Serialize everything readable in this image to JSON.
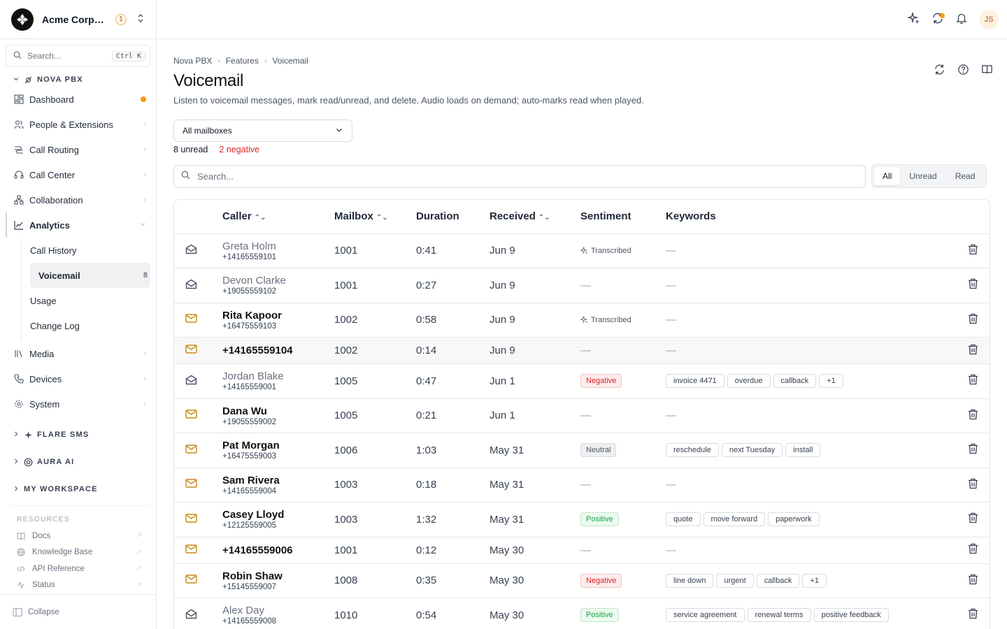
{
  "org": {
    "name": "Acme Corporation",
    "badge": "1"
  },
  "sidebar": {
    "search_placeholder": "Search...",
    "search_shortcut": "Ctrl K",
    "sections": {
      "nova": "NOVA PBX",
      "flare": "FLARE SMS",
      "aura": "AURA AI",
      "workspace": "MY WORKSPACE"
    },
    "items": {
      "dashboard": "Dashboard",
      "people": "People & Extensions",
      "routing": "Call Routing",
      "callcenter": "Call Center",
      "collab": "Collaboration",
      "analytics": "Analytics",
      "media": "Media",
      "devices": "Devices",
      "system": "System"
    },
    "analytics_sub": {
      "history": "Call History",
      "voicemail": "Voicemail",
      "voicemail_count": "8",
      "usage": "Usage",
      "changelog": "Change Log"
    },
    "resources": {
      "title": "RESOURCES",
      "docs": "Docs",
      "kb": "Knowledge Base",
      "api": "API Reference",
      "status": "Status"
    },
    "collapse": "Collapse"
  },
  "topbar": {
    "avatar": "JS"
  },
  "page": {
    "breadcrumb": [
      "Nova PBX",
      "Features",
      "Voicemail"
    ],
    "title": "Voicemail",
    "description": "Listen to voicemail messages, mark read/unread, and delete. Audio loads on demand; auto-marks read when played.",
    "mailbox_select": "All mailboxes",
    "unread_stat": "8 unread",
    "negative_stat": "2 negative",
    "search_placeholder": "Search...",
    "filters": [
      "All",
      "Unread",
      "Read"
    ],
    "active_filter": "All"
  },
  "table": {
    "headers": {
      "caller": "Caller",
      "mailbox": "Mailbox",
      "duration": "Duration",
      "received": "Received",
      "sentiment": "Sentiment",
      "keywords": "Keywords"
    },
    "rows": [
      {
        "name": "Greta Holm",
        "number": "+14165559101",
        "read": true,
        "mailbox": "1001",
        "duration": "0:41",
        "received": "Jun 9",
        "sentiment": "Transcribed",
        "sentiment_type": "transcribed",
        "keywords": []
      },
      {
        "name": "Devon Clarke",
        "number": "+19055559102",
        "read": true,
        "mailbox": "1001",
        "duration": "0:27",
        "received": "Jun 9",
        "sentiment": "",
        "sentiment_type": "none",
        "keywords": []
      },
      {
        "name": "Rita Kapoor",
        "number": "+16475559103",
        "read": false,
        "mailbox": "1002",
        "duration": "0:58",
        "received": "Jun 9",
        "sentiment": "Transcribed",
        "sentiment_type": "transcribed",
        "keywords": []
      },
      {
        "name": "+14165559104",
        "number": "",
        "read": false,
        "mailbox": "1002",
        "duration": "0:14",
        "received": "Jun 9",
        "sentiment": "",
        "sentiment_type": "none",
        "keywords": [],
        "highlight": true
      },
      {
        "name": "Jordan Blake",
        "number": "+14165559001",
        "read": true,
        "mailbox": "1005",
        "duration": "0:47",
        "received": "Jun 1",
        "sentiment": "Negative",
        "sentiment_type": "neg",
        "keywords": [
          "invoice 4471",
          "overdue",
          "callback",
          "+1"
        ]
      },
      {
        "name": "Dana Wu",
        "number": "+19055559002",
        "read": false,
        "mailbox": "1005",
        "duration": "0:21",
        "received": "Jun 1",
        "sentiment": "",
        "sentiment_type": "none",
        "keywords": []
      },
      {
        "name": "Pat Morgan",
        "number": "+16475559003",
        "read": false,
        "mailbox": "1006",
        "duration": "1:03",
        "received": "May 31",
        "sentiment": "Neutral",
        "sentiment_type": "neu",
        "keywords": [
          "reschedule",
          "next Tuesday",
          "install"
        ]
      },
      {
        "name": "Sam Rivera",
        "number": "+14165559004",
        "read": false,
        "mailbox": "1003",
        "duration": "0:18",
        "received": "May 31",
        "sentiment": "",
        "sentiment_type": "none",
        "keywords": []
      },
      {
        "name": "Casey Lloyd",
        "number": "+12125559005",
        "read": false,
        "mailbox": "1003",
        "duration": "1:32",
        "received": "May 31",
        "sentiment": "Positive",
        "sentiment_type": "pos",
        "keywords": [
          "quote",
          "move forward",
          "paperwork"
        ]
      },
      {
        "name": "+14165559006",
        "number": "",
        "read": false,
        "mailbox": "1001",
        "duration": "0:12",
        "received": "May 30",
        "sentiment": "",
        "sentiment_type": "none",
        "keywords": []
      },
      {
        "name": "Robin Shaw",
        "number": "+15145559007",
        "read": false,
        "mailbox": "1008",
        "duration": "0:35",
        "received": "May 30",
        "sentiment": "Negative",
        "sentiment_type": "neg",
        "keywords": [
          "line down",
          "urgent",
          "callback",
          "+1"
        ]
      },
      {
        "name": "Alex Day",
        "number": "+14165559008",
        "read": true,
        "mailbox": "1010",
        "duration": "0:54",
        "received": "May 30",
        "sentiment": "Positive",
        "sentiment_type": "pos",
        "keywords": [
          "service agreement",
          "renewal terms",
          "positive feedback"
        ]
      }
    ]
  },
  "colors": {
    "accent": "#f59e0b",
    "unread_icon": "#c98a1a",
    "negative": "#dc2626",
    "positive": "#16a34a"
  }
}
